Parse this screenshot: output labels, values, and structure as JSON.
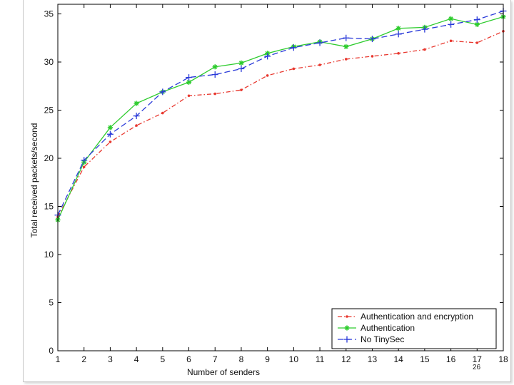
{
  "slide": {
    "number": "26"
  },
  "chart_data": {
    "type": "line",
    "title": "",
    "xlabel": "Number of senders",
    "ylabel": "Total received packets/second",
    "x": [
      1,
      2,
      3,
      4,
      5,
      6,
      7,
      8,
      9,
      10,
      11,
      12,
      13,
      14,
      15,
      16,
      17,
      18
    ],
    "xlim": [
      1,
      18
    ],
    "ylim": [
      0,
      36
    ],
    "x_ticks": [
      1,
      2,
      3,
      4,
      5,
      6,
      7,
      8,
      9,
      10,
      11,
      12,
      13,
      14,
      15,
      16,
      17,
      18
    ],
    "y_ticks": [
      0,
      5,
      10,
      15,
      20,
      25,
      30,
      35
    ],
    "grid": false,
    "legend_position": "bottom-right",
    "series": [
      {
        "name": "Authentication and encryption",
        "color": "#e8382f",
        "line_style": "dash-dot",
        "marker": "dot",
        "values": [
          13.9,
          19.1,
          21.7,
          23.4,
          24.7,
          26.5,
          26.7,
          27.1,
          28.6,
          29.3,
          29.7,
          30.3,
          30.6,
          30.9,
          31.3,
          32.2,
          32.0,
          33.2
        ]
      },
      {
        "name": "Authentication",
        "color": "#2ecc2e",
        "line_style": "solid",
        "marker": "star",
        "values": [
          13.6,
          19.6,
          23.2,
          25.7,
          26.9,
          27.9,
          29.5,
          29.9,
          30.9,
          31.6,
          32.1,
          31.6,
          32.4,
          33.5,
          33.6,
          34.5,
          33.9,
          34.7
        ]
      },
      {
        "name": "No TinySec",
        "color": "#2a3ad9",
        "line_style": "dashed",
        "marker": "plus",
        "values": [
          14.1,
          19.8,
          22.5,
          24.4,
          26.9,
          28.4,
          28.7,
          29.3,
          30.6,
          31.5,
          32.0,
          32.5,
          32.4,
          32.9,
          33.4,
          33.9,
          34.4,
          35.3
        ]
      }
    ]
  }
}
